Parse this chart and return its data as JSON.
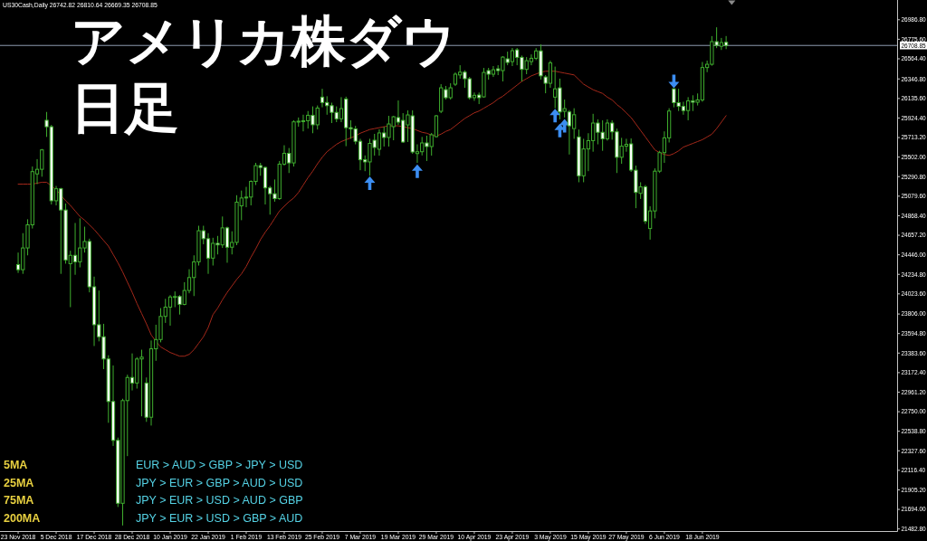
{
  "chart_data": {
    "type": "candlestick",
    "title": "アメリカ株ダウ",
    "subtitle": "日足",
    "annotations": [
      "US30Cash,Daily 26742.82 26810.64 26669.35 26708.85",
      "5MA",
      "EUR > AUD > GBP > JPY > USD",
      "25MA",
      "JPY > EUR > GBP > AUD > USD",
      "75MA",
      "JPY > EUR > USD > AUD > GBP",
      "200MA",
      "JPY > EUR > USD > GBP > AUD"
    ],
    "categories": [
      "23 Nov 2018",
      null,
      null,
      null,
      null,
      null,
      null,
      null,
      "5 Dec 2018",
      null,
      null,
      null,
      null,
      null,
      null,
      null,
      "17 Dec 2018",
      null,
      null,
      null,
      null,
      null,
      null,
      null,
      "28 Dec 2018",
      null,
      null,
      null,
      null,
      null,
      null,
      null,
      "10 Jan 2019",
      null,
      null,
      null,
      null,
      null,
      null,
      null,
      "22 Jan 2019",
      null,
      null,
      null,
      null,
      null,
      null,
      null,
      "1 Feb 2019",
      null,
      null,
      null,
      null,
      null,
      null,
      null,
      "13 Feb 2019",
      null,
      null,
      null,
      null,
      null,
      null,
      null,
      "25 Feb 2019",
      null,
      null,
      null,
      null,
      null,
      null,
      null,
      "7 Mar 2019",
      null,
      null,
      null,
      null,
      null,
      null,
      null,
      "19 Mar 2019",
      null,
      null,
      null,
      null,
      null,
      null,
      null,
      "29 Mar 2019",
      null,
      null,
      null,
      null,
      null,
      null,
      null,
      "10 Apr 2019",
      null,
      null,
      null,
      null,
      null,
      null,
      null,
      "23 Apr 2019",
      null,
      null,
      null,
      null,
      null,
      null,
      null,
      "3 May 2019",
      null,
      null,
      null,
      null,
      null,
      null,
      null,
      "15 May 2019",
      null,
      null,
      null,
      null,
      null,
      null,
      null,
      "27 May 2019",
      null,
      null,
      null,
      null,
      null,
      null,
      null,
      "6 Jun 2019",
      null,
      null,
      null,
      null,
      null,
      null,
      null,
      "18 Jun 2019",
      null,
      null,
      null,
      null,
      null
    ],
    "ohlc": [
      [
        24340,
        24470,
        24250,
        24285
      ],
      [
        24285,
        24680,
        24240,
        24520
      ],
      [
        24520,
        24830,
        24440,
        24770
      ],
      [
        24770,
        25400,
        24730,
        25345
      ],
      [
        25320,
        25480,
        25210,
        25370
      ],
      [
        25370,
        25590,
        25290,
        25580
      ],
      [
        25900,
        25990,
        25720,
        25830
      ],
      [
        25830,
        25850,
        24990,
        25030
      ],
      [
        25030,
        25190,
        24980,
        25160
      ],
      [
        25160,
        25170,
        24240,
        24930
      ],
      [
        24930,
        25000,
        24350,
        24390
      ],
      [
        24350,
        24490,
        23880,
        24440
      ],
      [
        24440,
        24790,
        24230,
        24370
      ],
      [
        24370,
        24840,
        24310,
        24520
      ],
      [
        24520,
        24750,
        24470,
        24590
      ],
      [
        24590,
        24620,
        24040,
        24100
      ],
      [
        24100,
        24210,
        23460,
        23690
      ],
      [
        23690,
        24060,
        23510,
        23560
      ],
      [
        23560,
        23700,
        23210,
        23320
      ],
      [
        23320,
        23360,
        22630,
        22860
      ],
      [
        22860,
        23250,
        22380,
        22440
      ],
      [
        22440,
        22470,
        21720,
        21760
      ],
      [
        21760,
        22890,
        21520,
        22870
      ],
      [
        22870,
        23150,
        22270,
        23120
      ],
      [
        23120,
        23380,
        22980,
        23060
      ],
      [
        23060,
        23340,
        23000,
        23320
      ],
      [
        23320,
        23420,
        22700,
        23340
      ],
      [
        23060,
        23120,
        22640,
        22690
      ],
      [
        22690,
        23520,
        22600,
        23430
      ],
      [
        23430,
        23690,
        23300,
        23530
      ],
      [
        23530,
        23870,
        23500,
        23780
      ],
      [
        23780,
        23970,
        23710,
        23880
      ],
      [
        23880,
        24010,
        23680,
        23990
      ],
      [
        23990,
        24050,
        23880,
        23995
      ],
      [
        23995,
        24010,
        23800,
        23910
      ],
      [
        23910,
        24150,
        23900,
        24060
      ],
      [
        24060,
        24290,
        24030,
        24200
      ],
      [
        24200,
        24440,
        24000,
        24370
      ],
      [
        24370,
        24760,
        24330,
        24706
      ],
      [
        24706,
        24760,
        24560,
        24620
      ],
      [
        24620,
        24680,
        24240,
        24410
      ],
      [
        24410,
        24630,
        24330,
        24570
      ],
      [
        24570,
        24650,
        24450,
        24553
      ],
      [
        24553,
        24860,
        24520,
        24737
      ],
      [
        24737,
        24750,
        24360,
        24528
      ],
      [
        24528,
        24700,
        24450,
        24580
      ],
      [
        24580,
        25090,
        24550,
        25015
      ],
      [
        24975,
        25140,
        24820,
        25060
      ],
      [
        25060,
        25180,
        24960,
        25070
      ],
      [
        25070,
        25250,
        24980,
        25239
      ],
      [
        25239,
        25440,
        25200,
        25410
      ],
      [
        25410,
        25440,
        25300,
        25390
      ],
      [
        25390,
        25400,
        24990,
        25169
      ],
      [
        25169,
        25190,
        24880,
        25106
      ],
      [
        25106,
        25260,
        25020,
        25053
      ],
      [
        25053,
        25460,
        25040,
        25426
      ],
      [
        25426,
        25630,
        25410,
        25543
      ],
      [
        25543,
        25600,
        25330,
        25439
      ],
      [
        25439,
        25900,
        25400,
        25883
      ],
      [
        25883,
        25930,
        25830,
        25890
      ],
      [
        25890,
        25960,
        25780,
        25895
      ],
      [
        25895,
        26000,
        25810,
        25954
      ],
      [
        25954,
        26050,
        25760,
        25851
      ],
      [
        25851,
        26060,
        25800,
        26032
      ],
      [
        26150,
        26240,
        26040,
        26092
      ],
      [
        26092,
        26160,
        25960,
        26058
      ],
      [
        26058,
        26090,
        25870,
        25985
      ],
      [
        25985,
        26050,
        25880,
        25916
      ],
      [
        25916,
        26150,
        25880,
        26026
      ],
      [
        26130,
        26155,
        25620,
        25820
      ],
      [
        25820,
        25900,
        25700,
        25807
      ],
      [
        25807,
        25840,
        25640,
        25673
      ],
      [
        25673,
        25700,
        25360,
        25473
      ],
      [
        25473,
        25520,
        25350,
        25450
      ],
      [
        25450,
        25700,
        25300,
        25650
      ],
      [
        25684,
        25753,
        25518,
        25606
      ],
      [
        25587,
        25802,
        25518,
        25763
      ],
      [
        25763,
        25831,
        25616,
        25714
      ],
      [
        25714,
        25948,
        25616,
        25860
      ],
      [
        25831,
        25948,
        25684,
        25938
      ],
      [
        25929,
        26114,
        25850,
        25880
      ],
      [
        25899,
        25977,
        25655,
        25665
      ],
      [
        25850,
        26007,
        25665,
        25958
      ],
      [
        25948,
        26007,
        25538,
        25557
      ],
      [
        25540,
        25640,
        25440,
        25560
      ],
      [
        25560,
        25720,
        25520,
        25655
      ],
      [
        25655,
        25733,
        25460,
        25616
      ],
      [
        25616,
        25763,
        25518,
        25743
      ],
      [
        25723,
        25958,
        25714,
        25948
      ],
      [
        25997,
        26290,
        25977,
        26251
      ],
      [
        26231,
        26271,
        26124,
        26144
      ],
      [
        26144,
        26300,
        26124,
        26251
      ],
      [
        26290,
        26417,
        26271,
        26398
      ],
      [
        26390,
        26495,
        26350,
        26420
      ],
      [
        26420,
        26440,
        26251,
        26349
      ],
      [
        26349,
        26368,
        26124,
        26144
      ],
      [
        26144,
        26200,
        26110,
        26170
      ],
      [
        26173,
        26200,
        26075,
        26144
      ],
      [
        26153,
        26466,
        26144,
        26417
      ],
      [
        26437,
        26466,
        26339,
        26398
      ],
      [
        26398,
        26486,
        26368,
        26446
      ],
      [
        26456,
        26495,
        26388,
        26437
      ],
      [
        26437,
        26593,
        26320,
        26583
      ],
      [
        26564,
        26642,
        26495,
        26525
      ],
      [
        26534,
        26681,
        26486,
        26652
      ],
      [
        26661,
        26681,
        26495,
        26580
      ],
      [
        26580,
        26600,
        26320,
        26450
      ],
      [
        26450,
        26583,
        26398,
        26544
      ],
      [
        26534,
        26612,
        26495,
        26570
      ],
      [
        26570,
        26680,
        26550,
        26650
      ],
      [
        26650,
        26720,
        26340,
        26380
      ],
      [
        26368,
        26388,
        26192,
        26300
      ],
      [
        26300,
        26544,
        26251,
        26520
      ],
      [
        26150,
        26480,
        26030,
        26240
      ],
      [
        26250,
        26350,
        25910,
        25990
      ],
      [
        25997,
        26124,
        25930,
        26026
      ],
      [
        25990,
        26010,
        25530,
        25840
      ],
      [
        25810,
        26030,
        25700,
        25960
      ],
      [
        25720,
        25800,
        25230,
        25300
      ],
      [
        25300,
        25700,
        25230,
        25590
      ],
      [
        25590,
        25760,
        25350,
        25680
      ],
      [
        25680,
        25970,
        25560,
        25870
      ],
      [
        25870,
        25910,
        25640,
        25770
      ],
      [
        25770,
        25900,
        25570,
        25700
      ],
      [
        25700,
        25910,
        25680,
        25870
      ],
      [
        25870,
        25900,
        25690,
        25775
      ],
      [
        25775,
        25810,
        25330,
        25500
      ],
      [
        25500,
        25710,
        25430,
        25620
      ],
      [
        25620,
        25700,
        25560,
        25640
      ],
      [
        25645,
        25704,
        25342,
        25362
      ],
      [
        25360,
        25410,
        24950,
        25120
      ],
      [
        25110,
        25230,
        25050,
        25180
      ],
      [
        25180,
        25200,
        24780,
        24810
      ],
      [
        24730,
        24970,
        24610,
        24920
      ],
      [
        24920,
        25380,
        24840,
        25350
      ],
      [
        25350,
        25570,
        25330,
        25550
      ],
      [
        25550,
        25780,
        25440,
        25710
      ],
      [
        25710,
        26030,
        25660,
        26000
      ],
      [
        26240,
        26245,
        26040,
        26090
      ],
      [
        26090,
        26240,
        26000,
        26050
      ],
      [
        26050,
        26100,
        25960,
        26005
      ],
      [
        26005,
        26150,
        25900,
        26110
      ],
      [
        26110,
        26170,
        26000,
        26095
      ],
      [
        26095,
        26190,
        26060,
        26120
      ],
      [
        26120,
        26530,
        26100,
        26470
      ],
      [
        26470,
        26545,
        26420,
        26505
      ],
      [
        26505,
        26810,
        26490,
        26750
      ],
      [
        26750,
        26905,
        26680,
        26710
      ],
      [
        26700,
        26790,
        26660,
        26740
      ],
      [
        26742.82,
        26810.64,
        26669.35,
        26708.85
      ]
    ],
    "color": "#3fae2e",
    "colors": [
      "#ffffff",
      "#000000",
      "#000000",
      "#000000",
      "#000000",
      "#000000",
      "#ffffff",
      "#ffffff",
      "#000000",
      "#ffffff",
      "#ffffff",
      "#000000",
      "#ffffff",
      "#000000",
      "#000000",
      "#ffffff",
      "#ffffff",
      "#ffffff",
      "#ffffff",
      "#ffffff",
      "#ffffff",
      "#ffffff",
      "#000000",
      "#000000",
      "#ffffff",
      "#000000",
      "#000000",
      "#ffffff",
      "#000000",
      "#000000",
      "#000000",
      "#000000",
      "#000000",
      "#000000",
      "#ffffff",
      "#000000",
      "#000000",
      "#000000",
      "#000000",
      "#ffffff",
      "#ffffff",
      "#000000",
      "#ffffff",
      "#000000",
      "#ffffff",
      "#000000",
      "#000000",
      "#000000",
      "#000000",
      "#000000",
      "#000000",
      "#ffffff",
      "#ffffff",
      "#ffffff",
      "#ffffff",
      "#000000",
      "#000000",
      "#ffffff",
      "#000000",
      "#000000",
      "#000000",
      "#000000",
      "#ffffff",
      "#000000",
      "#ffffff",
      "#ffffff",
      "#ffffff",
      "#ffffff",
      "#000000",
      "#ffffff",
      "#ffffff",
      "#ffffff",
      "#ffffff",
      "#ffffff",
      "#000000",
      "#ffffff",
      "#000000",
      "#ffffff",
      "#000000",
      "#000000",
      "#ffffff",
      "#ffffff",
      "#000000",
      "#ffffff",
      "#000000",
      "#000000",
      "#ffffff",
      "#000000",
      "#000000",
      "#000000",
      "#ffffff",
      "#000000",
      "#000000",
      "#000000",
      "#ffffff",
      "#ffffff",
      "#000000",
      "#ffffff",
      "#000000",
      "#ffffff",
      "#000000",
      "#ffffff",
      "#000000",
      "#ffffff",
      "#000000",
      "#ffffff",
      "#ffffff",
      "#000000",
      "#000000",
      "#000000",
      "#ffffff",
      "#ffffff",
      "#000000",
      "#000000",
      "#ffffff",
      "#000000",
      "#ffffff",
      "#000000",
      "#ffffff",
      "#000000",
      "#000000",
      "#000000",
      "#ffffff",
      "#ffffff",
      "#000000",
      "#ffffff",
      "#ffffff",
      "#000000",
      "#000000",
      "#ffffff",
      "#ffffff",
      "#000000",
      "#ffffff",
      "#000000",
      "#000000",
      "#000000",
      "#000000",
      "#000000",
      "#ffffff",
      "#ffffff",
      "#ffffff",
      "#000000",
      "#ffffff",
      "#000000",
      "#000000",
      "#000000",
      "#000000",
      "#ffffff",
      "#000000",
      "#ffffff"
    ],
    "series": [
      {
        "type": "line",
        "color": "#a3281a",
        "values": [
          25210,
          25210,
          25210,
          25210,
          25220,
          25230,
          25230,
          25190,
          25150,
          25090,
          25030,
          24980,
          24920,
          24860,
          24820,
          24770,
          24720,
          24660,
          24600,
          24540,
          24450,
          24360,
          24260,
          24150,
          24040,
          23920,
          23810,
          23700,
          23580,
          23510,
          23450,
          23420,
          23390,
          23370,
          23350,
          23350,
          23370,
          23420,
          23490,
          23560,
          23660,
          23800,
          23870,
          23960,
          24040,
          24110,
          24180,
          24240,
          24320,
          24420,
          24510,
          24610,
          24690,
          24760,
          24840,
          24920,
          24970,
          25020,
          25060,
          25120,
          25200,
          25280,
          25350,
          25430,
          25500,
          25560,
          25600,
          25640,
          25670,
          25690,
          25710,
          25730,
          25760,
          25780,
          25800,
          25810,
          25820,
          25830,
          25840,
          25840,
          25840,
          25830,
          25820,
          25810,
          25790,
          25770,
          25760,
          25740,
          25730,
          25750,
          25780,
          25800,
          25840,
          25880,
          25920,
          25950,
          25980,
          26000,
          26030,
          26060,
          26090,
          26130,
          26160,
          26200,
          26240,
          26280,
          26320,
          26350,
          26380,
          26400,
          26420,
          26430,
          26430,
          26430,
          26420,
          26410,
          26400,
          26390,
          26340,
          26290,
          26260,
          26230,
          26210,
          26190,
          26150,
          26120,
          26070,
          26030,
          25980,
          25930,
          25860,
          25790,
          25720,
          25650,
          25580,
          25550,
          25530,
          25520,
          25540,
          25570,
          25610,
          25630,
          25650,
          25670,
          25690,
          25720,
          25750,
          25810,
          25880,
          25950
        ]
      },
      {
        "type": "scatter",
        "color": "#3c8ef2",
        "values": [
          null,
          null,
          null,
          null,
          null,
          null,
          null,
          null,
          null,
          null,
          null,
          null,
          null,
          null,
          null,
          null,
          null,
          null,
          null,
          null,
          null,
          null,
          null,
          null,
          null,
          null,
          null,
          null,
          null,
          null,
          null,
          null,
          null,
          null,
          null,
          null,
          null,
          null,
          null,
          null,
          null,
          null,
          null,
          null,
          null,
          null,
          null,
          null,
          null,
          null,
          null,
          null,
          null,
          null,
          null,
          null,
          null,
          null,
          null,
          null,
          null,
          null,
          null,
          null,
          null,
          null,
          null,
          null,
          null,
          null,
          null,
          null,
          null,
          null,
          25220,
          null,
          null,
          null,
          null,
          null,
          null,
          null,
          null,
          null,
          25350,
          null,
          null,
          null,
          null,
          null,
          null,
          null,
          null,
          null,
          null,
          null,
          null,
          null,
          null,
          null,
          null,
          null,
          null,
          null,
          null,
          null,
          null,
          null,
          null,
          null,
          null,
          null,
          null,
          25950,
          25790,
          25840,
          null,
          null,
          null,
          null,
          null,
          null,
          null,
          null,
          null,
          null,
          null,
          null,
          null,
          null,
          null,
          null,
          null,
          null,
          null,
          null,
          null,
          null,
          26320,
          null,
          null,
          null,
          null,
          null,
          null,
          null,
          null,
          null,
          null,
          null
        ]
      }
    ],
    "ylim": [
      21460,
      27200
    ],
    "yticks": [
      {
        "value": 26986.8,
        "label": "26986.80"
      },
      {
        "value": 26775.6,
        "label": "26775.60"
      },
      {
        "value": 26564.4,
        "label": "26564.40"
      },
      {
        "value": 26346.8,
        "label": "26346.80"
      },
      {
        "value": 26135.6,
        "label": "26135.60"
      },
      {
        "value": 25924.4,
        "label": "25924.40"
      },
      {
        "value": 25713.2,
        "label": "25713.20"
      },
      {
        "value": 25502,
        "label": "25502.00"
      },
      {
        "value": 25290.8,
        "label": "25290.80"
      },
      {
        "value": 25079.6,
        "label": "25079.60"
      },
      {
        "value": 24868.4,
        "label": "24868.40"
      },
      {
        "value": 24657.2,
        "label": "24657.20"
      },
      {
        "value": 24446,
        "label": "24446.00"
      },
      {
        "value": 24234.8,
        "label": "24234.80"
      },
      {
        "value": 24023.6,
        "label": "24023.60"
      },
      {
        "value": 23806,
        "label": "23806.00"
      },
      {
        "value": 23594.8,
        "label": "23594.80"
      },
      {
        "value": 23383.6,
        "label": "23383.60"
      },
      {
        "value": 23172.4,
        "label": "23172.40"
      },
      {
        "value": 22961.2,
        "label": "22961.20"
      },
      {
        "value": 22750,
        "label": "22750.00"
      },
      {
        "value": 22538.8,
        "label": "22538.80"
      },
      {
        "value": 22327.6,
        "label": "22327.60"
      },
      {
        "value": 22116.4,
        "label": "22116.40"
      },
      {
        "value": 21905.2,
        "label": "21905.20"
      },
      {
        "value": 21694,
        "label": "21694.00"
      },
      {
        "value": 21482.8,
        "label": "21482.80"
      }
    ],
    "ref_lines": [
      {
        "axis": "y",
        "value": 26708.85,
        "label": "26708.85",
        "color": "#8f9bb0"
      }
    ]
  }
}
